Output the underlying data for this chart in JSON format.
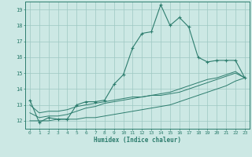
{
  "xlabel": "Humidex (Indice chaleur)",
  "x_values": [
    0,
    1,
    2,
    3,
    4,
    5,
    6,
    7,
    8,
    9,
    10,
    11,
    12,
    13,
    14,
    15,
    16,
    17,
    18,
    19,
    20,
    21,
    22,
    23
  ],
  "main_line": [
    13.3,
    11.9,
    12.2,
    12.1,
    12.1,
    13.0,
    13.2,
    13.2,
    13.3,
    14.3,
    14.9,
    16.6,
    17.5,
    17.6,
    19.3,
    18.0,
    18.5,
    17.9,
    16.0,
    15.7,
    15.8,
    15.8,
    15.8,
    14.7
  ],
  "line_flat": [
    12.0,
    12.0,
    12.0,
    12.1,
    12.1,
    12.1,
    12.2,
    12.2,
    12.3,
    12.4,
    12.5,
    12.6,
    12.7,
    12.8,
    12.9,
    13.0,
    13.2,
    13.4,
    13.6,
    13.8,
    14.0,
    14.2,
    14.5,
    14.7
  ],
  "line_mid1": [
    12.5,
    12.2,
    12.3,
    12.3,
    12.4,
    12.6,
    12.8,
    12.9,
    13.1,
    13.2,
    13.3,
    13.4,
    13.5,
    13.6,
    13.7,
    13.8,
    14.0,
    14.2,
    14.4,
    14.6,
    14.7,
    14.9,
    15.1,
    14.7
  ],
  "line_mid2": [
    13.0,
    12.5,
    12.6,
    12.6,
    12.7,
    12.9,
    13.0,
    13.1,
    13.2,
    13.3,
    13.4,
    13.5,
    13.5,
    13.6,
    13.6,
    13.7,
    13.8,
    14.0,
    14.2,
    14.4,
    14.6,
    14.8,
    15.0,
    14.7
  ],
  "xlim": [
    -0.5,
    23.5
  ],
  "ylim": [
    11.5,
    19.5
  ],
  "yticks": [
    12,
    13,
    14,
    15,
    16,
    17,
    18,
    19
  ],
  "xticks": [
    0,
    1,
    2,
    3,
    4,
    5,
    6,
    7,
    8,
    9,
    10,
    11,
    12,
    13,
    14,
    15,
    16,
    17,
    18,
    19,
    20,
    21,
    22,
    23
  ],
  "line_color": "#2d7d6e",
  "bg_color": "#cce8e4",
  "grid_color": "#9dc8c2"
}
